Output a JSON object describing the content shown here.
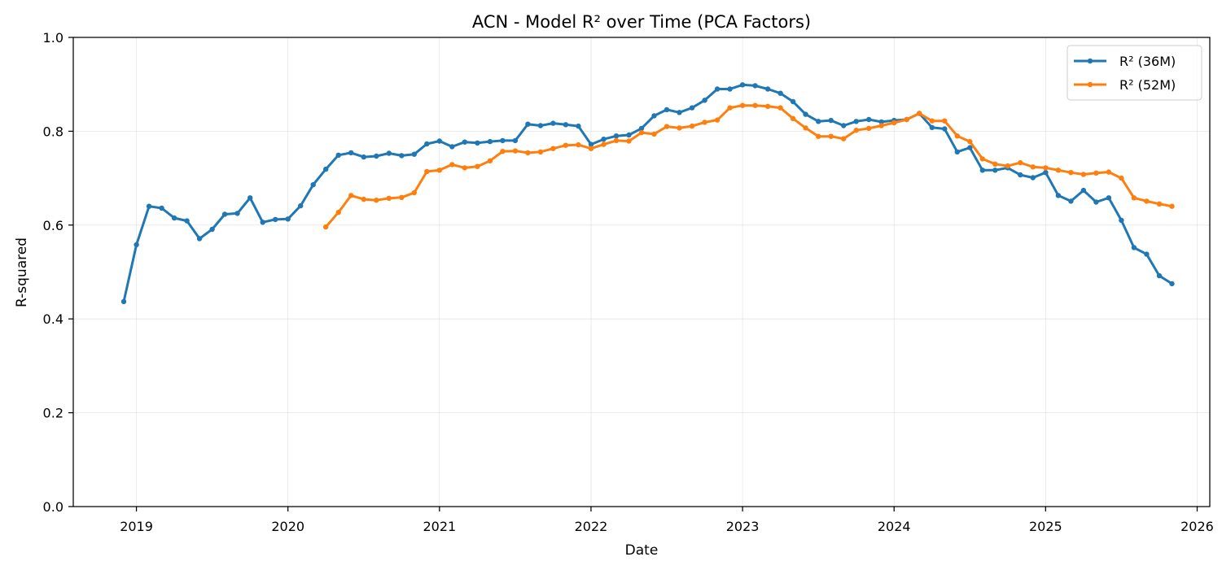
{
  "chart_data": {
    "type": "line",
    "title": "ACN - Model R² over Time (PCA Factors)",
    "xlabel": "Date",
    "ylabel": "R-squared",
    "xlim": [
      "2018-08-01",
      "2026-02-01"
    ],
    "ylim": [
      0,
      1
    ],
    "x_ticks": [
      "2019",
      "2020",
      "2021",
      "2022",
      "2023",
      "2024",
      "2025",
      "2026"
    ],
    "y_ticks": [
      "0.0",
      "0.2",
      "0.4",
      "0.6",
      "0.8",
      "1.0"
    ],
    "grid": true,
    "legend_position": "top-right",
    "series": [
      {
        "name": "R² (36M)",
        "color": "#1f77b4",
        "start": "2018-12",
        "values": [
          0.437,
          0.558,
          0.64,
          0.636,
          0.615,
          0.609,
          0.571,
          0.591,
          0.623,
          0.625,
          0.658,
          0.606,
          0.612,
          0.613,
          0.641,
          0.686,
          0.719,
          0.749,
          0.754,
          0.745,
          0.747,
          0.753,
          0.748,
          0.751,
          0.773,
          0.779,
          0.767,
          0.777,
          0.775,
          0.778,
          0.78,
          0.78,
          0.815,
          0.812,
          0.817,
          0.814,
          0.811,
          0.772,
          0.783,
          0.79,
          0.792,
          0.806,
          0.833,
          0.846,
          0.84,
          0.85,
          0.866,
          0.89,
          0.89,
          0.899,
          0.897,
          0.89,
          0.881,
          0.863,
          0.836,
          0.821,
          0.823,
          0.812,
          0.821,
          0.825,
          0.82,
          0.823,
          0.825,
          0.838,
          0.808,
          0.805,
          0.756,
          0.765,
          0.717,
          0.717,
          0.722,
          0.707,
          0.701,
          0.712,
          0.663,
          0.651,
          0.674,
          0.649,
          0.658,
          0.61,
          0.552,
          0.538,
          0.492,
          0.475
        ]
      },
      {
        "name": "R² (52M)",
        "color": "#ff7f0e",
        "start": "2020-04",
        "values": [
          0.596,
          0.627,
          0.663,
          0.655,
          0.653,
          0.657,
          0.659,
          0.669,
          0.714,
          0.717,
          0.729,
          0.722,
          0.725,
          0.737,
          0.757,
          0.758,
          0.754,
          0.756,
          0.763,
          0.77,
          0.771,
          0.763,
          0.772,
          0.78,
          0.779,
          0.797,
          0.794,
          0.81,
          0.807,
          0.811,
          0.819,
          0.824,
          0.85,
          0.855,
          0.855,
          0.853,
          0.85,
          0.827,
          0.807,
          0.789,
          0.789,
          0.784,
          0.802,
          0.806,
          0.812,
          0.818,
          0.825,
          0.838,
          0.822,
          0.822,
          0.79,
          0.778,
          0.741,
          0.73,
          0.726,
          0.733,
          0.724,
          0.722,
          0.717,
          0.712,
          0.708,
          0.711,
          0.713,
          0.7,
          0.658,
          0.651,
          0.645,
          0.64
        ]
      }
    ]
  }
}
